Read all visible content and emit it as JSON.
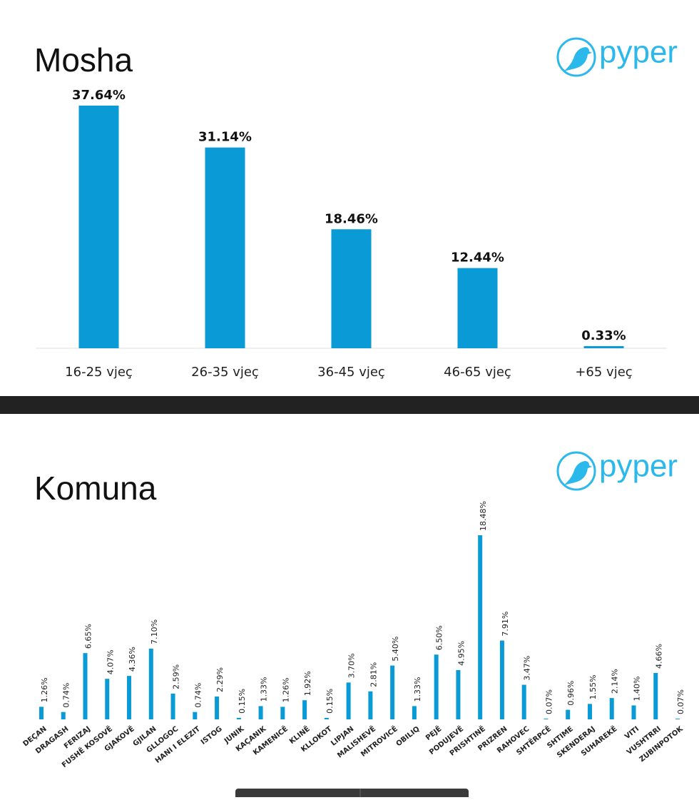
{
  "logos": [
    "pyper",
    "pyper"
  ],
  "chart_data": [
    {
      "type": "bar",
      "title": "Mosha",
      "color": "#0a9bd6",
      "categories": [
        "16-25 vjeç",
        "26-35 vjeç",
        "36-45 vjeç",
        "46-65 vjeç",
        "+65 vjeç"
      ],
      "values": [
        37.64,
        31.14,
        18.46,
        12.44,
        0.33
      ],
      "value_labels": [
        "37.64%",
        "31.14%",
        "18.46%",
        "12.44%",
        "0.33%"
      ]
    },
    {
      "type": "bar",
      "title": "Komuna",
      "color": "#0a9bd6",
      "categories": [
        "DEÇAN",
        "DRAGASH",
        "FERIZAJ",
        "FUSHË KOSOVË",
        "GJAKOVË",
        "GJILAN",
        "GLLOGOC",
        "HANI I ELEZIT",
        "ISTOG",
        "JUNIK",
        "KAÇANIK",
        "KAMENICË",
        "KLINË",
        "KLLOKOT",
        "LIPJAN",
        "MALISHEVË",
        "MITROVICË",
        "OBILIQ",
        "PEJË",
        "PODUJEVË",
        "PRISHTINË",
        "PRIZREN",
        "RAHOVEC",
        "SHTËRPCË",
        "SHTIME",
        "SKENDERAJ",
        "SUHAREKË",
        "VITI",
        "VUSHTRRI",
        "ZUBINPOTOK"
      ],
      "values": [
        1.26,
        0.74,
        6.65,
        4.07,
        4.36,
        7.1,
        2.59,
        0.74,
        2.29,
        0.15,
        1.33,
        1.26,
        1.92,
        0.15,
        3.7,
        2.81,
        5.4,
        1.33,
        6.5,
        4.95,
        18.48,
        7.91,
        3.47,
        0.07,
        0.96,
        1.55,
        2.14,
        1.4,
        4.66,
        0.07
      ],
      "value_labels": [
        "1.26%",
        "0.74%",
        "6.65%",
        "4.07%",
        "4.36%",
        "7.10%",
        "2.59%",
        "0.74%",
        "2.29%",
        "0.15%",
        "1.33%",
        "1.26%",
        "1.92%",
        "0.15%",
        "3.70%",
        "2.81%",
        "5.40%",
        "1.33%",
        "6.50%",
        "4.95%",
        "18.48%",
        "7.91%",
        "3.47%",
        "0.07%",
        "0.96%",
        "1.55%",
        "2.14%",
        "1.40%",
        "4.66%",
        "0.07%"
      ]
    }
  ]
}
